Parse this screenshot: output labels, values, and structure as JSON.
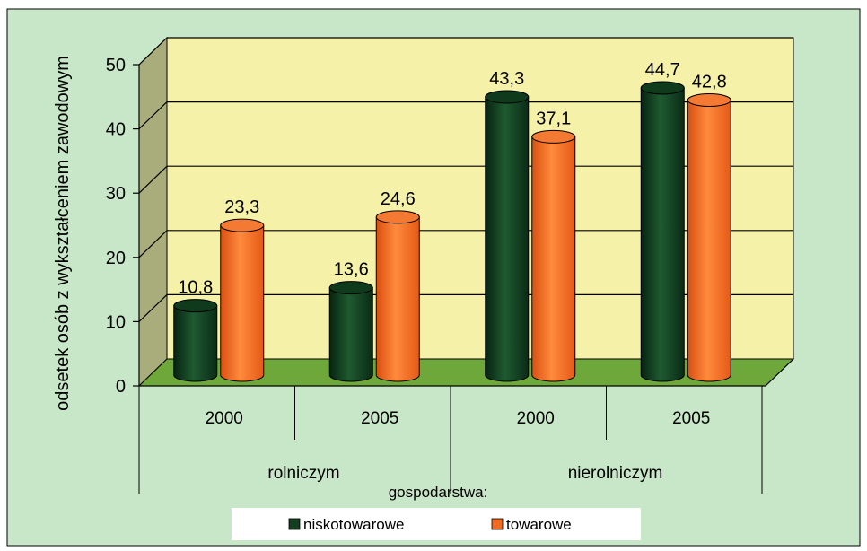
{
  "chart_data": {
    "type": "bar",
    "title": "",
    "ylabel": "odsetek osób z wykształceniem zawodowym",
    "ylim": [
      0,
      50
    ],
    "yticks": [
      0,
      10,
      20,
      30,
      40,
      50
    ],
    "groups": [
      {
        "label": "rolniczym",
        "categories": [
          "2000",
          "2005"
        ]
      },
      {
        "label": "nierolniczym",
        "categories": [
          "2000",
          "2005"
        ]
      }
    ],
    "xlabel": "gospodarstwa:",
    "series": [
      {
        "name": "niskotowarowe",
        "color": "#123d1e",
        "values": [
          10.8,
          13.6,
          43.3,
          44.7
        ],
        "labels": [
          "10,8",
          "13,6",
          "43,3",
          "44,7"
        ]
      },
      {
        "name": "towarowe",
        "color": "#f26a21",
        "values": [
          23.3,
          24.6,
          37.1,
          42.8
        ],
        "labels": [
          "23,3",
          "24,6",
          "37,1",
          "42,8"
        ]
      }
    ],
    "grid": true,
    "legend_position": "bottom-center",
    "colors": {
      "background": "#c8e6c8",
      "wall": "#f5f1a8",
      "floor": "#6ea83a",
      "side_wall": "#a9ad7b"
    }
  }
}
